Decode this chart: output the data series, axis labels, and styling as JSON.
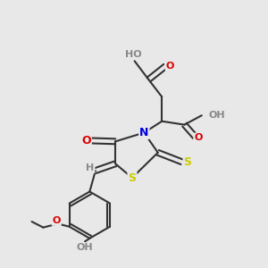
{
  "background_color": "#e8e8e8",
  "bond_color": "#333333",
  "bond_lw": 1.5,
  "atom_bg": "#e8e8e8",
  "colors": {
    "S": "#cccc00",
    "N": "#0000dd",
    "O": "#dd0000",
    "OH": "#888888",
    "H": "#888888",
    "C": "#333333"
  }
}
